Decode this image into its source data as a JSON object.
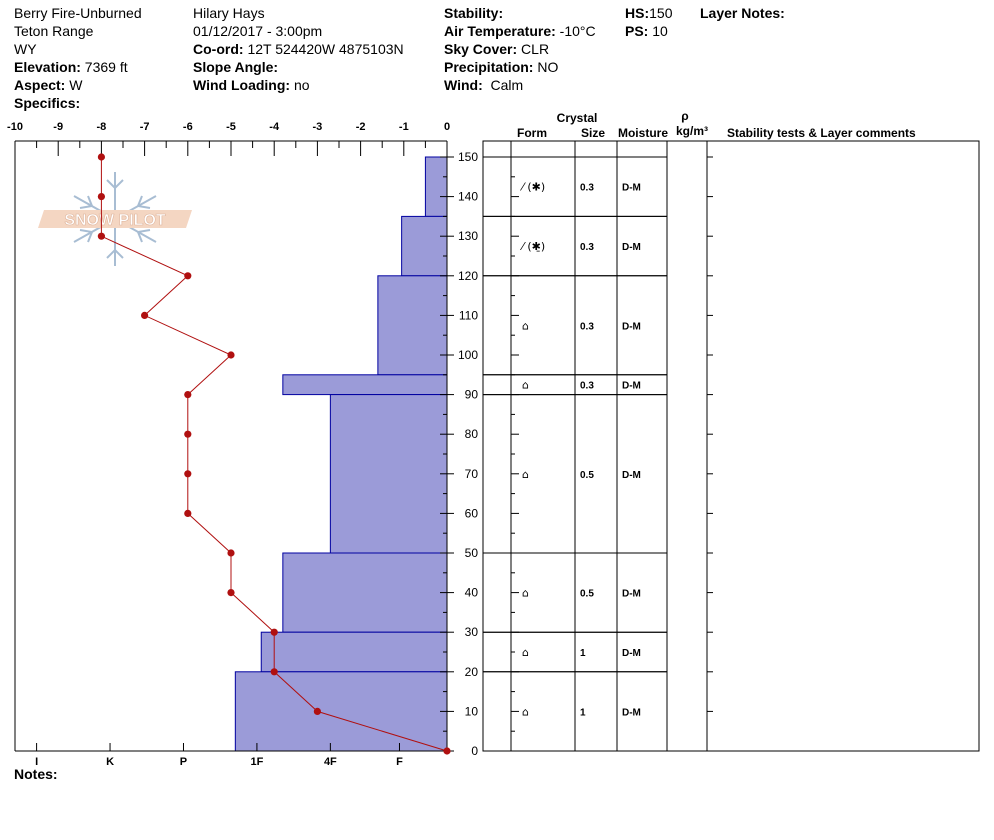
{
  "header": {
    "site": "Berry Fire-Unburned",
    "range": "Teton Range",
    "state": "WY",
    "elevation_label": "Elevation:",
    "elevation": "7369 ft",
    "aspect_label": "Aspect:",
    "aspect": "W",
    "specifics_label": "Specifics:",
    "observer": "Hilary Hays",
    "datetime": "01/12/2017 - 3:00pm",
    "coord_label": "Co-ord:",
    "coord": "12T 524420W 4875103N",
    "slope_label": "Slope Angle:",
    "wind_loading_label": "Wind Loading:",
    "wind_loading": "no",
    "stability_label": "Stability:",
    "air_temp_label": "Air Temperature:",
    "air_temp": "-10°C",
    "sky_label": "Sky Cover:",
    "sky": "CLR",
    "precip_label": "Precipitation:",
    "precip": "NO",
    "wind_label": "Wind:",
    "wind": "Calm",
    "hs_label": "HS:",
    "hs": "150",
    "ps_label": "PS:",
    "ps": "10",
    "layer_notes_label": "Layer Notes:",
    "notes_label": "Notes:"
  },
  "logo": {
    "text": "SNOW PILOT"
  },
  "columns": {
    "crystal": "Crystal",
    "form": "Form",
    "size": "Size",
    "moisture": "Moisture",
    "rho": "ρ",
    "density_unit": "kg/m³",
    "comments": "Stability tests & Layer comments"
  },
  "chart_data": {
    "type": "snow-profile",
    "temperature_axis": {
      "min": -10,
      "max": 0,
      "ticks": [
        -10,
        -9,
        -8,
        -7,
        -6,
        -5,
        -4,
        -3,
        -2,
        -1,
        0
      ]
    },
    "height_axis": {
      "min": 0,
      "max": 150,
      "ticks": [
        0,
        10,
        20,
        30,
        40,
        50,
        60,
        70,
        80,
        90,
        100,
        110,
        120,
        130,
        140,
        150
      ]
    },
    "hardness_labels": [
      "I",
      "K",
      "P",
      "1F",
      "4F",
      "F"
    ],
    "temperature_profile": [
      {
        "h": 150,
        "t": -8
      },
      {
        "h": 140,
        "t": -8
      },
      {
        "h": 130,
        "t": -8
      },
      {
        "h": 120,
        "t": -6
      },
      {
        "h": 110,
        "t": -7
      },
      {
        "h": 100,
        "t": -5
      },
      {
        "h": 90,
        "t": -6
      },
      {
        "h": 80,
        "t": -6
      },
      {
        "h": 70,
        "t": -6
      },
      {
        "h": 60,
        "t": -6
      },
      {
        "h": 50,
        "t": -5
      },
      {
        "h": 40,
        "t": -5
      },
      {
        "h": 30,
        "t": -4
      },
      {
        "h": 20,
        "t": -4
      },
      {
        "h": 10,
        "t": -3
      },
      {
        "h": 0,
        "t": 0
      }
    ],
    "hardness_profile": [
      {
        "top": 150,
        "bottom": 135,
        "scale": -0.5
      },
      {
        "top": 135,
        "bottom": 120,
        "scale": -1.05
      },
      {
        "top": 120,
        "bottom": 95,
        "scale": -1.6
      },
      {
        "top": 95,
        "bottom": 90,
        "scale": -3.8
      },
      {
        "top": 90,
        "bottom": 50,
        "scale": -2.7
      },
      {
        "top": 50,
        "bottom": 30,
        "scale": -3.8
      },
      {
        "top": 30,
        "bottom": 20,
        "scale": -4.3
      },
      {
        "top": 20,
        "bottom": 0,
        "scale": -4.9
      }
    ],
    "layers": [
      {
        "top": 150,
        "bottom": 135,
        "form": "⁄ (✱)",
        "size": "0.3",
        "moisture": "D-M"
      },
      {
        "top": 135,
        "bottom": 120,
        "form": "⁄ (✱̱)",
        "size": "0.3",
        "moisture": "D-M"
      },
      {
        "top": 120,
        "bottom": 95,
        "form": "⌂",
        "size": "0.3",
        "moisture": "D-M"
      },
      {
        "top": 95,
        "bottom": 90,
        "form": "⌂",
        "size": "0.3",
        "moisture": "D-M"
      },
      {
        "top": 90,
        "bottom": 50,
        "form": "⌂",
        "size": "0.5",
        "moisture": "D-M"
      },
      {
        "top": 50,
        "bottom": 30,
        "form": "⌂",
        "size": "0.5",
        "moisture": "D-M"
      },
      {
        "top": 30,
        "bottom": 20,
        "form": "⌂",
        "size": "1",
        "moisture": "D-M"
      },
      {
        "top": 20,
        "bottom": 0,
        "form": "⌂",
        "size": "1",
        "moisture": "D-M"
      }
    ],
    "colors": {
      "hardness_fill": "#9b9bd8",
      "hardness_stroke": "#0000a0",
      "temp_line": "#b01010"
    }
  }
}
